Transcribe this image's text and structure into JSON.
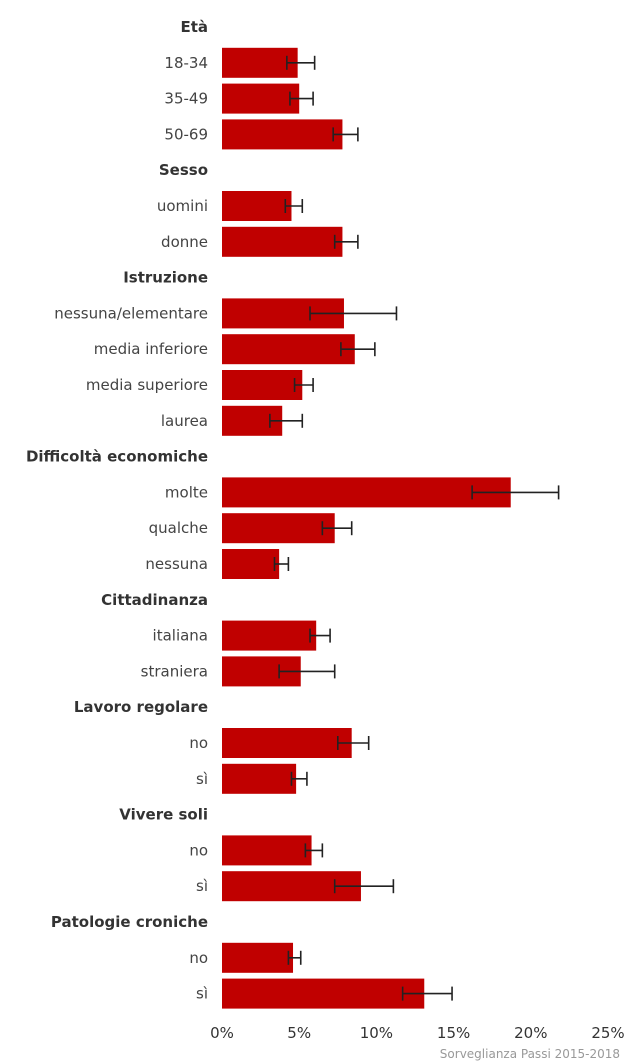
{
  "chart_data": {
    "type": "bar",
    "orientation": "horizontal",
    "bar_color": "#c00000",
    "error_bar_color": "#222222",
    "xlim": [
      0,
      25
    ],
    "x_ticks": [
      0,
      5,
      10,
      15,
      20,
      25
    ],
    "x_tick_labels": [
      "0%",
      "5%",
      "10%",
      "15%",
      "20%",
      "25%"
    ],
    "source": "Sorveglianza Passi 2015-2018",
    "groups": [
      {
        "title": "Età",
        "items": [
          {
            "label": "18-34",
            "value": 4.9,
            "ci": [
              4.2,
              6.0
            ]
          },
          {
            "label": "35-49",
            "value": 5.0,
            "ci": [
              4.4,
              5.9
            ]
          },
          {
            "label": "50-69",
            "value": 7.8,
            "ci": [
              7.2,
              8.8
            ]
          }
        ]
      },
      {
        "title": "Sesso",
        "items": [
          {
            "label": "uomini",
            "value": 4.5,
            "ci": [
              4.1,
              5.2
            ]
          },
          {
            "label": "donne",
            "value": 7.8,
            "ci": [
              7.3,
              8.8
            ]
          }
        ]
      },
      {
        "title": "Istruzione",
        "items": [
          {
            "label": "nessuna/elementare",
            "value": 7.9,
            "ci": [
              5.7,
              11.3
            ]
          },
          {
            "label": "media inferiore",
            "value": 8.6,
            "ci": [
              7.7,
              9.9
            ]
          },
          {
            "label": "media superiore",
            "value": 5.2,
            "ci": [
              4.7,
              5.9
            ]
          },
          {
            "label": "laurea",
            "value": 3.9,
            "ci": [
              3.1,
              5.2
            ]
          }
        ]
      },
      {
        "title": "Difficoltà economiche",
        "items": [
          {
            "label": "molte",
            "value": 18.7,
            "ci": [
              16.2,
              21.8
            ]
          },
          {
            "label": "qualche",
            "value": 7.3,
            "ci": [
              6.5,
              8.4
            ]
          },
          {
            "label": "nessuna",
            "value": 3.7,
            "ci": [
              3.4,
              4.3
            ]
          }
        ]
      },
      {
        "title": "Cittadinanza",
        "items": [
          {
            "label": "italiana",
            "value": 6.1,
            "ci": [
              5.7,
              7.0
            ]
          },
          {
            "label": "straniera",
            "value": 5.1,
            "ci": [
              3.7,
              7.3
            ]
          }
        ]
      },
      {
        "title": "Lavoro regolare",
        "items": [
          {
            "label": "no",
            "value": 8.4,
            "ci": [
              7.5,
              9.5
            ]
          },
          {
            "label": "sì",
            "value": 4.8,
            "ci": [
              4.5,
              5.5
            ]
          }
        ]
      },
      {
        "title": "Vivere soli",
        "items": [
          {
            "label": "no",
            "value": 5.8,
            "ci": [
              5.4,
              6.5
            ]
          },
          {
            "label": "sì",
            "value": 9.0,
            "ci": [
              7.3,
              11.1
            ]
          }
        ]
      },
      {
        "title": "Patologie croniche",
        "items": [
          {
            "label": "no",
            "value": 4.6,
            "ci": [
              4.3,
              5.1
            ]
          },
          {
            "label": "sì",
            "value": 13.1,
            "ci": [
              11.7,
              14.9
            ]
          }
        ]
      }
    ]
  }
}
